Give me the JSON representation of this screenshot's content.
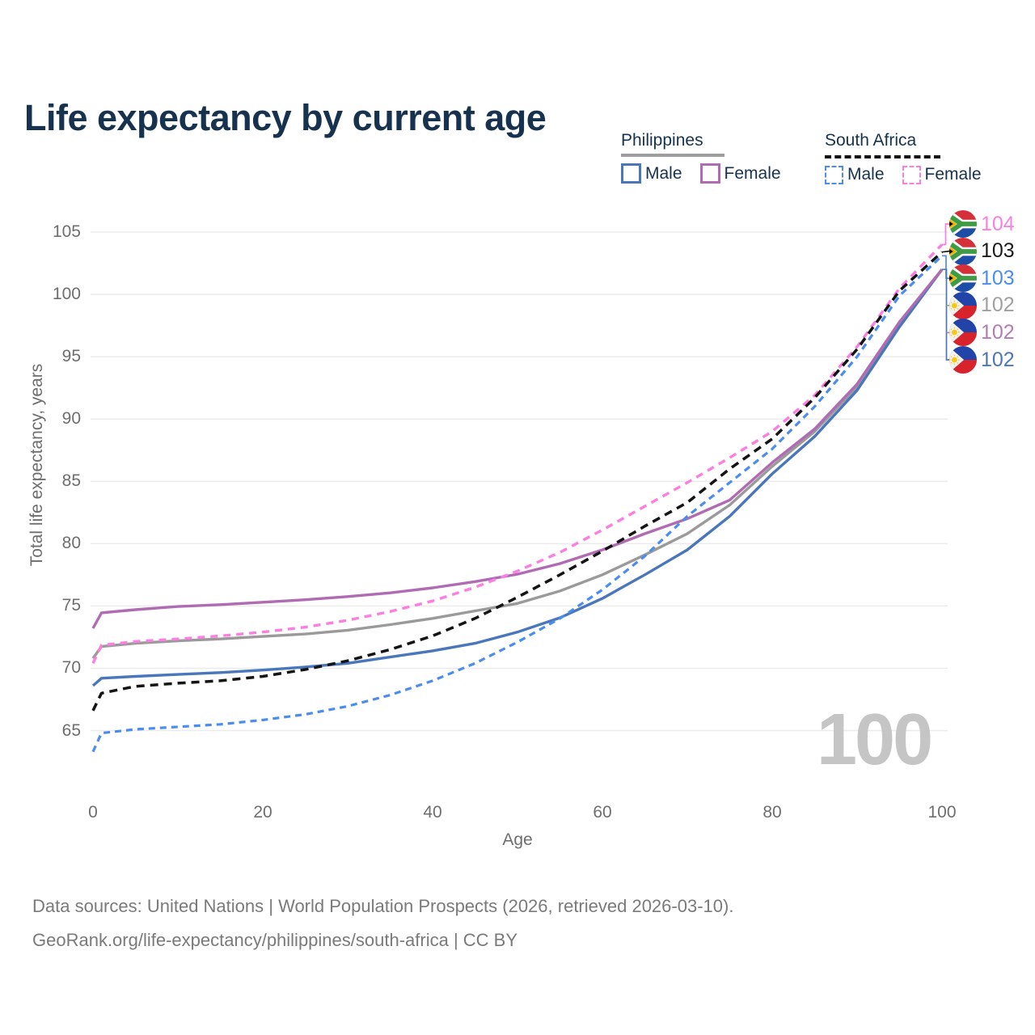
{
  "title": "Life expectancy by current age",
  "legend": {
    "groups": [
      {
        "label": "Philippines",
        "line_style": "solid",
        "underline_color": "#9e9e9e",
        "items": [
          {
            "label": "Male",
            "color": "#4a77bb",
            "dashed": false
          },
          {
            "label": "Female",
            "color": "#b06cb3",
            "dashed": false
          }
        ]
      },
      {
        "label": "South Africa",
        "line_style": "dashed",
        "underline_color": "#141414",
        "items": [
          {
            "label": "Male",
            "color": "#4a8cf0",
            "dashed": true
          },
          {
            "label": "Female",
            "color": "#fb7ee0",
            "dashed": true
          }
        ]
      }
    ]
  },
  "chart_data": {
    "type": "line",
    "title": "Life expectancy by current age",
    "xlabel": "Age",
    "ylabel": "Total life expectancy, years",
    "xlim": [
      0,
      100
    ],
    "ylim": [
      65,
      105
    ],
    "x_ticks": [
      0,
      20,
      40,
      60,
      80,
      100
    ],
    "y_ticks": [
      65,
      70,
      75,
      80,
      85,
      90,
      95,
      100,
      105
    ],
    "grid": "horizontal",
    "legend_position": "top-right",
    "watermark": "100",
    "series": [
      {
        "name": "Philippines",
        "country": "Philippines",
        "sex": "both",
        "color": "#9a9a9a",
        "dash": null,
        "width": 3.4,
        "points": [
          [
            0,
            70.8
          ],
          [
            1,
            71.75
          ],
          [
            5,
            72.0
          ],
          [
            10,
            72.2
          ],
          [
            15,
            72.35
          ],
          [
            20,
            72.55
          ],
          [
            25,
            72.75
          ],
          [
            30,
            73.05
          ],
          [
            35,
            73.5
          ],
          [
            40,
            74.0
          ],
          [
            45,
            74.6
          ],
          [
            50,
            75.2
          ],
          [
            55,
            76.2
          ],
          [
            60,
            77.5
          ],
          [
            65,
            79.1
          ],
          [
            70,
            80.8
          ],
          [
            75,
            83.1
          ],
          [
            80,
            86.2
          ],
          [
            85,
            89.0
          ],
          [
            90,
            92.6
          ],
          [
            95,
            97.6
          ],
          [
            100,
            102.0
          ]
        ]
      },
      {
        "name": "Philippines Male",
        "country": "Philippines",
        "sex": "male",
        "color": "#4a77bb",
        "dash": null,
        "width": 3.4,
        "points": [
          [
            0,
            68.6
          ],
          [
            1,
            69.2
          ],
          [
            5,
            69.35
          ],
          [
            10,
            69.5
          ],
          [
            15,
            69.65
          ],
          [
            20,
            69.85
          ],
          [
            25,
            70.1
          ],
          [
            30,
            70.4
          ],
          [
            35,
            70.9
          ],
          [
            40,
            71.4
          ],
          [
            45,
            72.0
          ],
          [
            50,
            72.9
          ],
          [
            55,
            74.05
          ],
          [
            60,
            75.6
          ],
          [
            65,
            77.5
          ],
          [
            70,
            79.5
          ],
          [
            75,
            82.2
          ],
          [
            80,
            85.6
          ],
          [
            85,
            88.6
          ],
          [
            90,
            92.3
          ],
          [
            95,
            97.4
          ],
          [
            100,
            102.0
          ]
        ]
      },
      {
        "name": "Philippines Female",
        "country": "Philippines",
        "sex": "female",
        "color": "#b06cb3",
        "dash": null,
        "width": 3.4,
        "points": [
          [
            0,
            73.2
          ],
          [
            1,
            74.45
          ],
          [
            5,
            74.7
          ],
          [
            10,
            74.95
          ],
          [
            15,
            75.1
          ],
          [
            20,
            75.3
          ],
          [
            25,
            75.5
          ],
          [
            30,
            75.75
          ],
          [
            35,
            76.05
          ],
          [
            40,
            76.45
          ],
          [
            45,
            76.95
          ],
          [
            50,
            77.55
          ],
          [
            55,
            78.4
          ],
          [
            60,
            79.5
          ],
          [
            65,
            80.8
          ],
          [
            70,
            82.0
          ],
          [
            75,
            83.5
          ],
          [
            80,
            86.5
          ],
          [
            85,
            89.2
          ],
          [
            90,
            92.8
          ],
          [
            95,
            97.8
          ],
          [
            100,
            102.0
          ]
        ]
      },
      {
        "name": "South Africa Female",
        "country": "South Africa",
        "sex": "female",
        "color": "#fb7ee0",
        "dash": "9 7",
        "width": 3.4,
        "points": [
          [
            0,
            70.4
          ],
          [
            1,
            71.85
          ],
          [
            5,
            72.15
          ],
          [
            10,
            72.35
          ],
          [
            15,
            72.6
          ],
          [
            20,
            72.9
          ],
          [
            25,
            73.3
          ],
          [
            30,
            73.85
          ],
          [
            35,
            74.55
          ],
          [
            40,
            75.4
          ],
          [
            45,
            76.5
          ],
          [
            50,
            77.8
          ],
          [
            55,
            79.3
          ],
          [
            60,
            81.1
          ],
          [
            65,
            83.0
          ],
          [
            70,
            84.9
          ],
          [
            75,
            86.9
          ],
          [
            80,
            89.0
          ],
          [
            85,
            91.9
          ],
          [
            90,
            95.8
          ],
          [
            95,
            100.5
          ],
          [
            100,
            104.0
          ]
        ]
      },
      {
        "name": "South Africa Male",
        "country": "South Africa",
        "sex": "male",
        "color": "#4a8cf0",
        "dash": "8 6",
        "width": 3.2,
        "points": [
          [
            0,
            63.3
          ],
          [
            1,
            64.8
          ],
          [
            5,
            65.1
          ],
          [
            10,
            65.3
          ],
          [
            15,
            65.5
          ],
          [
            20,
            65.85
          ],
          [
            25,
            66.3
          ],
          [
            30,
            66.95
          ],
          [
            35,
            67.85
          ],
          [
            40,
            69.0
          ],
          [
            45,
            70.4
          ],
          [
            50,
            72.1
          ],
          [
            55,
            74.0
          ],
          [
            60,
            76.3
          ],
          [
            65,
            79.0
          ],
          [
            70,
            82.2
          ],
          [
            75,
            84.9
          ],
          [
            80,
            87.6
          ],
          [
            85,
            91.0
          ],
          [
            90,
            95.0
          ],
          [
            95,
            99.9
          ],
          [
            100,
            103.1
          ]
        ]
      },
      {
        "name": "South Africa",
        "country": "South Africa",
        "sex": "both",
        "color": "#141414",
        "dash": "10 7",
        "width": 3.5,
        "points": [
          [
            0,
            66.6
          ],
          [
            1,
            68.0
          ],
          [
            5,
            68.55
          ],
          [
            10,
            68.8
          ],
          [
            15,
            69.0
          ],
          [
            20,
            69.35
          ],
          [
            25,
            69.9
          ],
          [
            30,
            70.6
          ],
          [
            35,
            71.5
          ],
          [
            40,
            72.6
          ],
          [
            45,
            74.0
          ],
          [
            50,
            75.7
          ],
          [
            55,
            77.5
          ],
          [
            60,
            79.4
          ],
          [
            65,
            81.4
          ],
          [
            70,
            83.3
          ],
          [
            75,
            86.0
          ],
          [
            80,
            88.4
          ],
          [
            85,
            91.7
          ],
          [
            90,
            95.6
          ],
          [
            95,
            100.3
          ],
          [
            100,
            103.4
          ]
        ]
      }
    ],
    "end_labels": [
      {
        "value": "104",
        "color": "#fb7ee0",
        "flag": "south-africa",
        "series": "South Africa Female"
      },
      {
        "value": "103",
        "color": "#1a1a1a",
        "flag": "south-africa",
        "series": "South Africa"
      },
      {
        "value": "103",
        "color": "#4a8cf0",
        "flag": "south-africa",
        "series": "South Africa Male"
      },
      {
        "value": "102",
        "color": "#a0a0a0",
        "flag": "philippines",
        "series": "Philippines"
      },
      {
        "value": "102",
        "color": "#b57ab8",
        "flag": "philippines",
        "series": "Philippines Female"
      },
      {
        "value": "102",
        "color": "#4a77bb",
        "flag": "philippines",
        "series": "Philippines Male"
      }
    ]
  },
  "footer": {
    "line1": "Data sources: United Nations | World Population Prospects (2026, retrieved 2026-03-10).",
    "line2": "GeoRank.org/life-expectancy/philippines/south-africa | CC BY"
  }
}
